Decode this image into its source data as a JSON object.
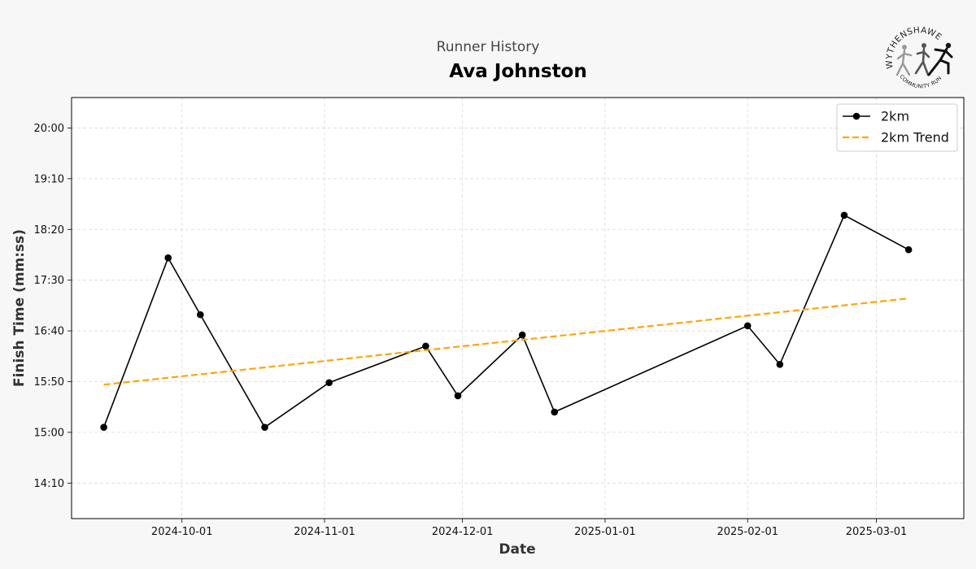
{
  "page": {
    "background": "#f7f7f7",
    "subtitle": "Runner History",
    "runner_name": "Ava Johnston",
    "logo": {
      "name": "WYTHENSHAWE",
      "tagline": "COMMUNITY RUN"
    }
  },
  "chart_data": {
    "type": "line",
    "title": "Ava Johnston",
    "subtitle": "Runner History",
    "xlabel": "Date",
    "ylabel": "Finish Time (mm:ss)",
    "x_is_date": true,
    "xlim": [
      "2024-09-07",
      "2025-03-20"
    ],
    "ylim_seconds": [
      815,
      1230
    ],
    "x_ticks": [
      "2024-10-01",
      "2024-11-01",
      "2024-12-01",
      "2025-01-01",
      "2025-02-01",
      "2025-03-01"
    ],
    "y_ticks": [
      "14:10",
      "15:00",
      "15:50",
      "16:40",
      "17:30",
      "18:20",
      "19:10",
      "20:00"
    ],
    "grid": true,
    "legend_position": "top-right",
    "series": [
      {
        "name": "2km",
        "color": "#000000",
        "style": "solid",
        "marker": "circle",
        "points": [
          {
            "x": "2024-09-14",
            "y": "15:05"
          },
          {
            "x": "2024-09-28",
            "y": "17:52"
          },
          {
            "x": "2024-10-05",
            "y": "16:56"
          },
          {
            "x": "2024-10-19",
            "y": "15:05"
          },
          {
            "x": "2024-11-02",
            "y": "15:49"
          },
          {
            "x": "2024-11-23",
            "y": "16:25"
          },
          {
            "x": "2024-11-30",
            "y": "15:36"
          },
          {
            "x": "2024-12-14",
            "y": "16:36"
          },
          {
            "x": "2024-12-21",
            "y": "15:20"
          },
          {
            "x": "2025-02-01",
            "y": "16:45"
          },
          {
            "x": "2025-02-08",
            "y": "16:07"
          },
          {
            "x": "2025-02-22",
            "y": "18:34"
          },
          {
            "x": "2025-03-08",
            "y": "18:00"
          }
        ]
      },
      {
        "name": "2km Trend",
        "color": "#ffa500",
        "style": "dashed",
        "points": [
          {
            "x": "2024-09-14",
            "y": "15:47"
          },
          {
            "x": "2025-03-08",
            "y": "17:12"
          }
        ]
      }
    ]
  }
}
